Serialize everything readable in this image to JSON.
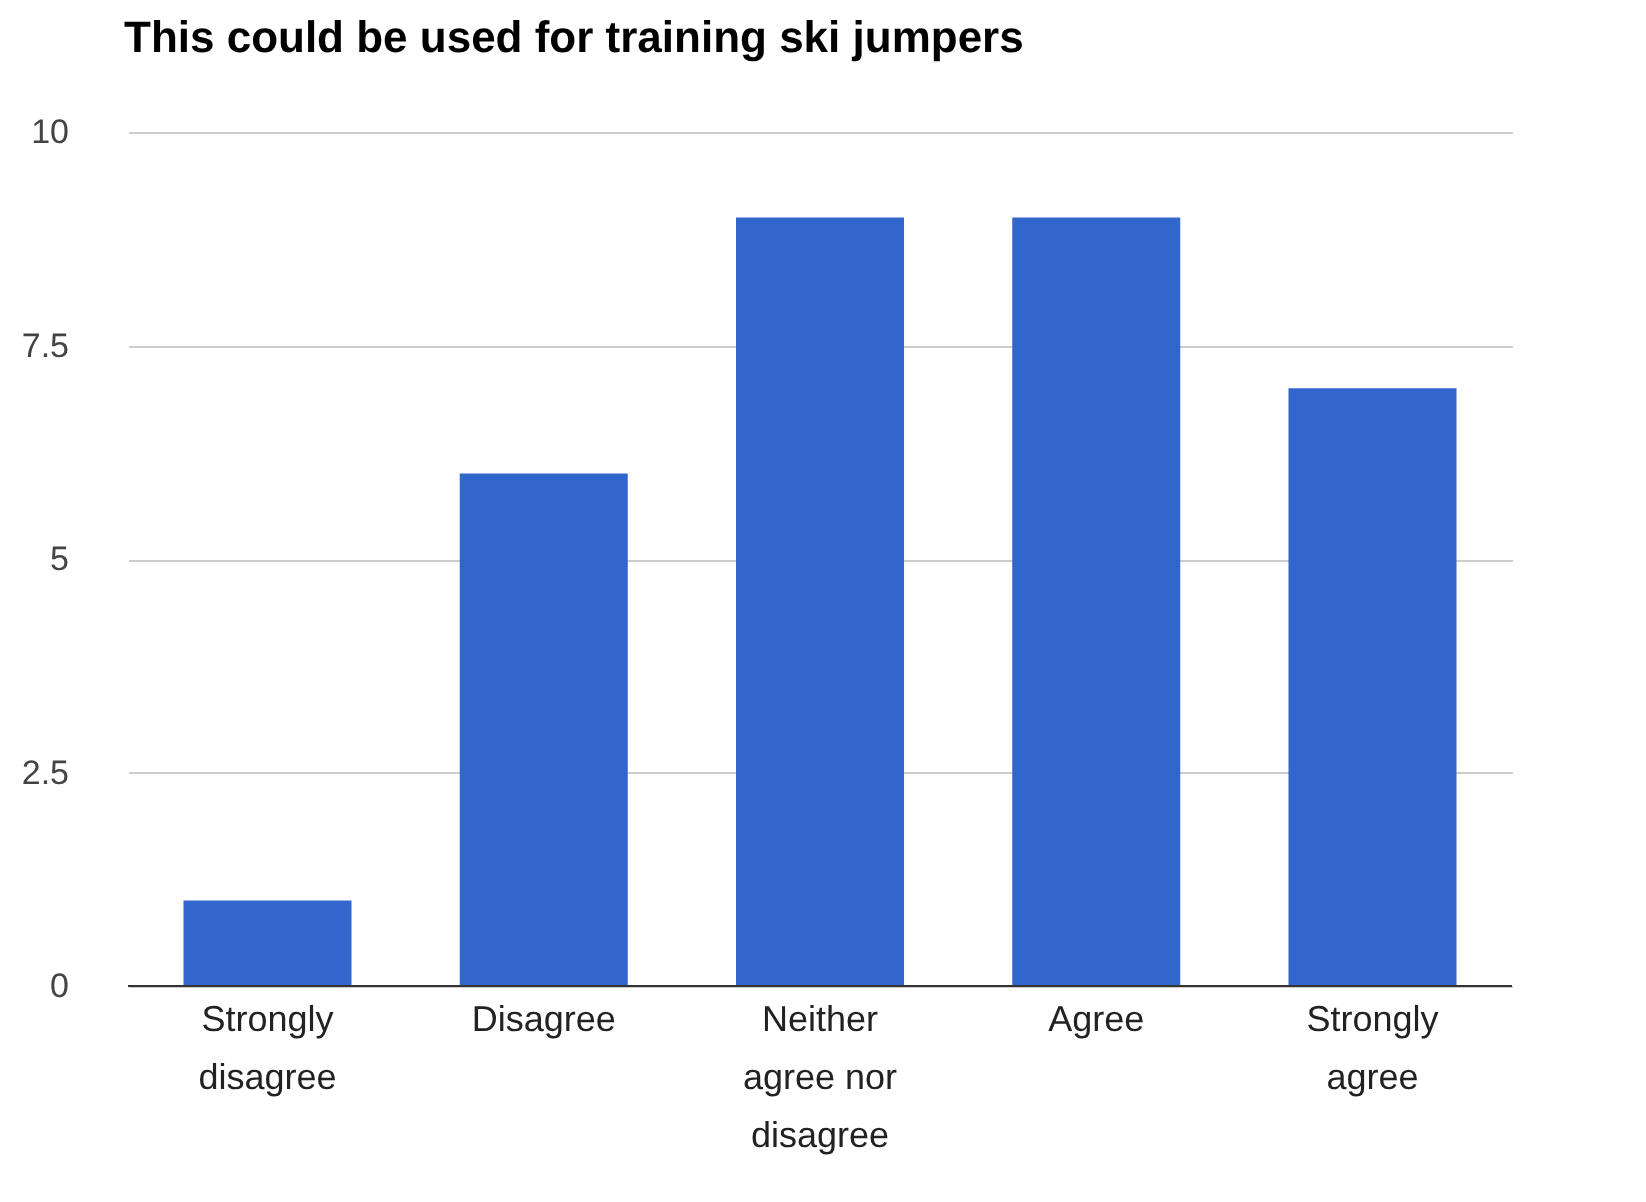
{
  "chart_data": {
    "type": "bar",
    "title": "This could be used for training ski jumpers",
    "categories": [
      "Strongly disagree",
      "Disagree",
      "Neither agree nor disagree",
      "Agree",
      "Strongly agree"
    ],
    "values": [
      1,
      6,
      9,
      9,
      7
    ],
    "color": "#3366cc",
    "ylim": [
      0,
      10
    ],
    "yticks": [
      0,
      2.5,
      5,
      7.5,
      10
    ],
    "grid": "y"
  }
}
